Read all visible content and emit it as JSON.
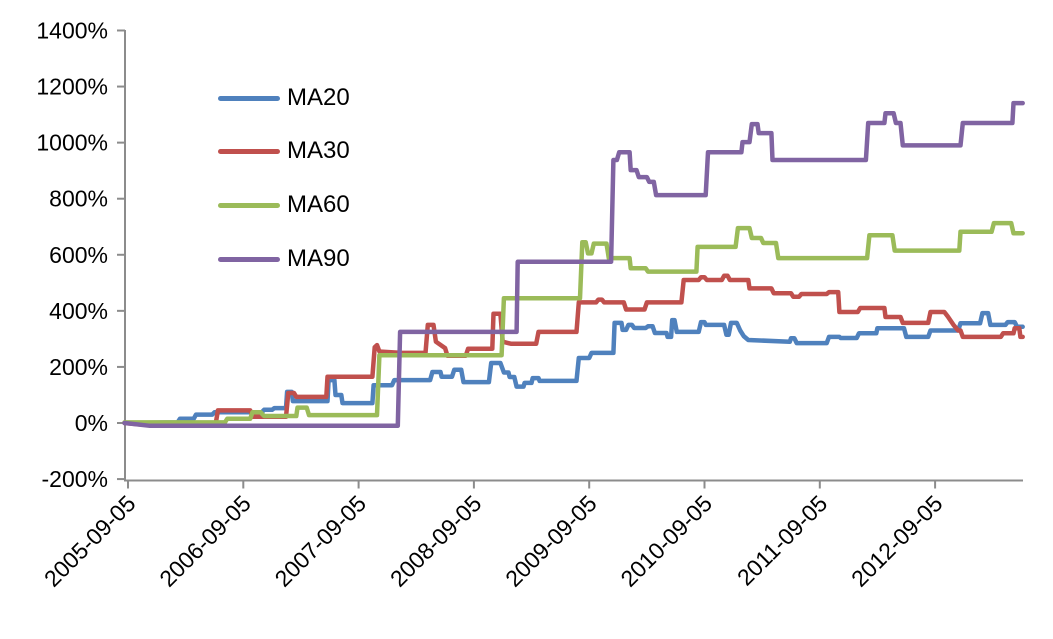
{
  "chart_data": {
    "type": "line",
    "title": "",
    "x_axis": {
      "tick_labels": [
        "2005-09-05",
        "2006-09-05",
        "2007-09-05",
        "2008-09-05",
        "2009-09-05",
        "2010-09-05",
        "2011-09-05",
        "2012-09-05"
      ],
      "x_unit": "years after 2005-09-05",
      "range": [
        -0.03,
        7.76
      ],
      "ticks_at": [
        0,
        1,
        2,
        3,
        4,
        5,
        6,
        7
      ]
    },
    "y_axis": {
      "tick_labels": [
        "1400%",
        "1200%",
        "1000%",
        "800%",
        "600%",
        "400%",
        "200%",
        "0%",
        "-200%"
      ],
      "min": -200,
      "max": 1400,
      "step": 200,
      "unit": "%"
    },
    "legend": {
      "position": "upper-left-inside",
      "entries": [
        "MA20",
        "MA30",
        "MA60",
        "MA90"
      ]
    },
    "grid": false,
    "axis_color": "#8c8c8c",
    "text_color": "#000000",
    "series": [
      {
        "name": "MA20",
        "color": "#4F81BD",
        "points": [
          [
            -0.03,
            0
          ],
          [
            0.43,
            2
          ],
          [
            0.45,
            15
          ],
          [
            0.57,
            15
          ],
          [
            0.59,
            30
          ],
          [
            0.73,
            30
          ],
          [
            0.75,
            38
          ],
          [
            1.16,
            38
          ],
          [
            1.18,
            47
          ],
          [
            1.25,
            47
          ],
          [
            1.27,
            53
          ],
          [
            1.37,
            53
          ],
          [
            1.38,
            111
          ],
          [
            1.42,
            111
          ],
          [
            1.43,
            78
          ],
          [
            1.73,
            78
          ],
          [
            1.74,
            153
          ],
          [
            1.79,
            153
          ],
          [
            1.8,
            100
          ],
          [
            1.85,
            100
          ],
          [
            1.86,
            71
          ],
          [
            2.12,
            71
          ],
          [
            2.13,
            135
          ],
          [
            2.29,
            135
          ],
          [
            2.31,
            153
          ],
          [
            2.62,
            153
          ],
          [
            2.64,
            182
          ],
          [
            2.71,
            182
          ],
          [
            2.72,
            165
          ],
          [
            2.81,
            165
          ],
          [
            2.83,
            190
          ],
          [
            2.89,
            190
          ],
          [
            2.91,
            146
          ],
          [
            3.13,
            146
          ],
          [
            3.15,
            214
          ],
          [
            3.23,
            214
          ],
          [
            3.26,
            180
          ],
          [
            3.3,
            180
          ],
          [
            3.31,
            164
          ],
          [
            3.35,
            164
          ],
          [
            3.37,
            130
          ],
          [
            3.43,
            130
          ],
          [
            3.44,
            143
          ],
          [
            3.5,
            143
          ],
          [
            3.51,
            160
          ],
          [
            3.56,
            160
          ],
          [
            3.57,
            150
          ],
          [
            3.89,
            150
          ],
          [
            3.91,
            232
          ],
          [
            4.0,
            232
          ],
          [
            4.02,
            250
          ],
          [
            4.21,
            250
          ],
          [
            4.22,
            357
          ],
          [
            4.28,
            357
          ],
          [
            4.29,
            332
          ],
          [
            4.32,
            332
          ],
          [
            4.34,
            350
          ],
          [
            4.37,
            350
          ],
          [
            4.39,
            339
          ],
          [
            4.49,
            339
          ],
          [
            4.51,
            345
          ],
          [
            4.55,
            345
          ],
          [
            4.57,
            321
          ],
          [
            4.67,
            321
          ],
          [
            4.68,
            307
          ],
          [
            4.71,
            307
          ],
          [
            4.72,
            367
          ],
          [
            4.74,
            367
          ],
          [
            4.76,
            325
          ],
          [
            4.95,
            325
          ],
          [
            4.97,
            360
          ],
          [
            5.0,
            360
          ],
          [
            5.01,
            350
          ],
          [
            5.17,
            350
          ],
          [
            5.19,
            315
          ],
          [
            5.21,
            315
          ],
          [
            5.23,
            357
          ],
          [
            5.28,
            357
          ],
          [
            5.31,
            330
          ],
          [
            5.34,
            310
          ],
          [
            5.38,
            296
          ],
          [
            5.74,
            290
          ],
          [
            5.75,
            302
          ],
          [
            5.78,
            302
          ],
          [
            5.8,
            285
          ],
          [
            6.06,
            285
          ],
          [
            6.08,
            307
          ],
          [
            6.17,
            307
          ],
          [
            6.18,
            303
          ],
          [
            6.32,
            303
          ],
          [
            6.34,
            320
          ],
          [
            6.49,
            320
          ],
          [
            6.5,
            338
          ],
          [
            6.73,
            338
          ],
          [
            6.75,
            307
          ],
          [
            6.94,
            307
          ],
          [
            6.96,
            330
          ],
          [
            7.2,
            330
          ],
          [
            7.22,
            356
          ],
          [
            7.39,
            356
          ],
          [
            7.41,
            392
          ],
          [
            7.46,
            392
          ],
          [
            7.48,
            350
          ],
          [
            7.61,
            350
          ],
          [
            7.63,
            360
          ],
          [
            7.69,
            360
          ],
          [
            7.71,
            343
          ],
          [
            7.76,
            343
          ]
        ]
      },
      {
        "name": "MA30",
        "color": "#C0504D",
        "points": [
          [
            -0.03,
            0
          ],
          [
            0.1,
            -5
          ],
          [
            0.76,
            -5
          ],
          [
            0.78,
            45
          ],
          [
            1.06,
            45
          ],
          [
            1.08,
            22
          ],
          [
            1.37,
            22
          ],
          [
            1.39,
            107
          ],
          [
            1.44,
            107
          ],
          [
            1.46,
            93
          ],
          [
            1.72,
            93
          ],
          [
            1.73,
            165
          ],
          [
            2.12,
            165
          ],
          [
            2.14,
            270
          ],
          [
            2.16,
            278
          ],
          [
            2.18,
            255
          ],
          [
            2.37,
            250
          ],
          [
            2.58,
            250
          ],
          [
            2.6,
            350
          ],
          [
            2.65,
            350
          ],
          [
            2.67,
            290
          ],
          [
            2.75,
            267
          ],
          [
            2.77,
            240
          ],
          [
            2.93,
            240
          ],
          [
            2.95,
            265
          ],
          [
            3.16,
            265
          ],
          [
            3.17,
            390
          ],
          [
            3.23,
            390
          ],
          [
            3.25,
            290
          ],
          [
            3.32,
            283
          ],
          [
            3.54,
            283
          ],
          [
            3.56,
            325
          ],
          [
            3.89,
            325
          ],
          [
            3.91,
            430
          ],
          [
            4.06,
            430
          ],
          [
            4.08,
            440
          ],
          [
            4.11,
            440
          ],
          [
            4.13,
            430
          ],
          [
            4.3,
            430
          ],
          [
            4.32,
            405
          ],
          [
            4.48,
            405
          ],
          [
            4.5,
            430
          ],
          [
            4.8,
            430
          ],
          [
            4.82,
            510
          ],
          [
            4.95,
            510
          ],
          [
            4.97,
            520
          ],
          [
            5.0,
            520
          ],
          [
            5.02,
            510
          ],
          [
            5.15,
            510
          ],
          [
            5.17,
            525
          ],
          [
            5.2,
            525
          ],
          [
            5.22,
            510
          ],
          [
            5.38,
            510
          ],
          [
            5.39,
            480
          ],
          [
            5.58,
            480
          ],
          [
            5.6,
            463
          ],
          [
            5.75,
            463
          ],
          [
            5.77,
            450
          ],
          [
            5.82,
            450
          ],
          [
            5.84,
            460
          ],
          [
            6.06,
            460
          ],
          [
            6.08,
            467
          ],
          [
            6.16,
            467
          ],
          [
            6.17,
            396
          ],
          [
            6.33,
            396
          ],
          [
            6.35,
            410
          ],
          [
            6.56,
            410
          ],
          [
            6.57,
            378
          ],
          [
            6.7,
            378
          ],
          [
            6.72,
            357
          ],
          [
            6.94,
            357
          ],
          [
            6.96,
            396
          ],
          [
            7.08,
            396
          ],
          [
            7.11,
            380
          ],
          [
            7.16,
            350
          ],
          [
            7.2,
            330
          ],
          [
            7.22,
            330
          ],
          [
            7.24,
            307
          ],
          [
            7.57,
            307
          ],
          [
            7.59,
            320
          ],
          [
            7.68,
            320
          ],
          [
            7.69,
            338
          ],
          [
            7.73,
            338
          ],
          [
            7.74,
            307
          ],
          [
            7.76,
            307
          ]
        ]
      },
      {
        "name": "MA60",
        "color": "#9BBB59",
        "points": [
          [
            -0.03,
            2
          ],
          [
            0.84,
            2
          ],
          [
            0.86,
            15
          ],
          [
            1.06,
            15
          ],
          [
            1.08,
            38
          ],
          [
            1.15,
            38
          ],
          [
            1.18,
            25
          ],
          [
            1.46,
            25
          ],
          [
            1.47,
            55
          ],
          [
            1.55,
            55
          ],
          [
            1.57,
            28
          ],
          [
            2.16,
            28
          ],
          [
            2.18,
            242
          ],
          [
            3.24,
            242
          ],
          [
            3.26,
            445
          ],
          [
            3.92,
            445
          ],
          [
            3.94,
            645
          ],
          [
            3.97,
            645
          ],
          [
            3.99,
            605
          ],
          [
            4.02,
            605
          ],
          [
            4.04,
            640
          ],
          [
            4.15,
            640
          ],
          [
            4.17,
            588
          ],
          [
            4.35,
            588
          ],
          [
            4.36,
            552
          ],
          [
            4.49,
            552
          ],
          [
            4.51,
            540
          ],
          [
            4.93,
            540
          ],
          [
            4.94,
            628
          ],
          [
            5.27,
            628
          ],
          [
            5.29,
            695
          ],
          [
            5.39,
            695
          ],
          [
            5.41,
            660
          ],
          [
            5.49,
            660
          ],
          [
            5.51,
            642
          ],
          [
            5.62,
            642
          ],
          [
            5.64,
            588
          ],
          [
            6.41,
            588
          ],
          [
            6.43,
            670
          ],
          [
            6.63,
            670
          ],
          [
            6.65,
            615
          ],
          [
            7.21,
            615
          ],
          [
            7.22,
            682
          ],
          [
            7.49,
            682
          ],
          [
            7.51,
            713
          ],
          [
            7.66,
            713
          ],
          [
            7.68,
            677
          ],
          [
            7.76,
            677
          ]
        ]
      },
      {
        "name": "MA90",
        "color": "#8064A2",
        "points": [
          [
            -0.03,
            0
          ],
          [
            0.19,
            -10
          ],
          [
            2.34,
            -10
          ],
          [
            2.36,
            325
          ],
          [
            3.37,
            325
          ],
          [
            3.38,
            575
          ],
          [
            4.19,
            575
          ],
          [
            4.21,
            938
          ],
          [
            4.24,
            938
          ],
          [
            4.26,
            966
          ],
          [
            4.35,
            966
          ],
          [
            4.36,
            902
          ],
          [
            4.41,
            902
          ],
          [
            4.43,
            877
          ],
          [
            4.5,
            877
          ],
          [
            4.52,
            860
          ],
          [
            4.56,
            860
          ],
          [
            4.58,
            813
          ],
          [
            5.01,
            813
          ],
          [
            5.03,
            966
          ],
          [
            5.32,
            966
          ],
          [
            5.33,
            1002
          ],
          [
            5.39,
            1002
          ],
          [
            5.41,
            1066
          ],
          [
            5.46,
            1066
          ],
          [
            5.47,
            1034
          ],
          [
            5.58,
            1034
          ],
          [
            5.59,
            938
          ],
          [
            6.4,
            938
          ],
          [
            6.42,
            1070
          ],
          [
            6.56,
            1070
          ],
          [
            6.57,
            1105
          ],
          [
            6.64,
            1105
          ],
          [
            6.66,
            1070
          ],
          [
            6.7,
            1070
          ],
          [
            6.72,
            990
          ],
          [
            7.22,
            990
          ],
          [
            7.24,
            1070
          ],
          [
            7.67,
            1070
          ],
          [
            7.68,
            1141
          ],
          [
            7.76,
            1141
          ]
        ]
      }
    ]
  },
  "legend_rows": [
    {
      "label": "MA20"
    },
    {
      "label": "MA30"
    },
    {
      "label": "MA60"
    },
    {
      "label": "MA90"
    }
  ]
}
